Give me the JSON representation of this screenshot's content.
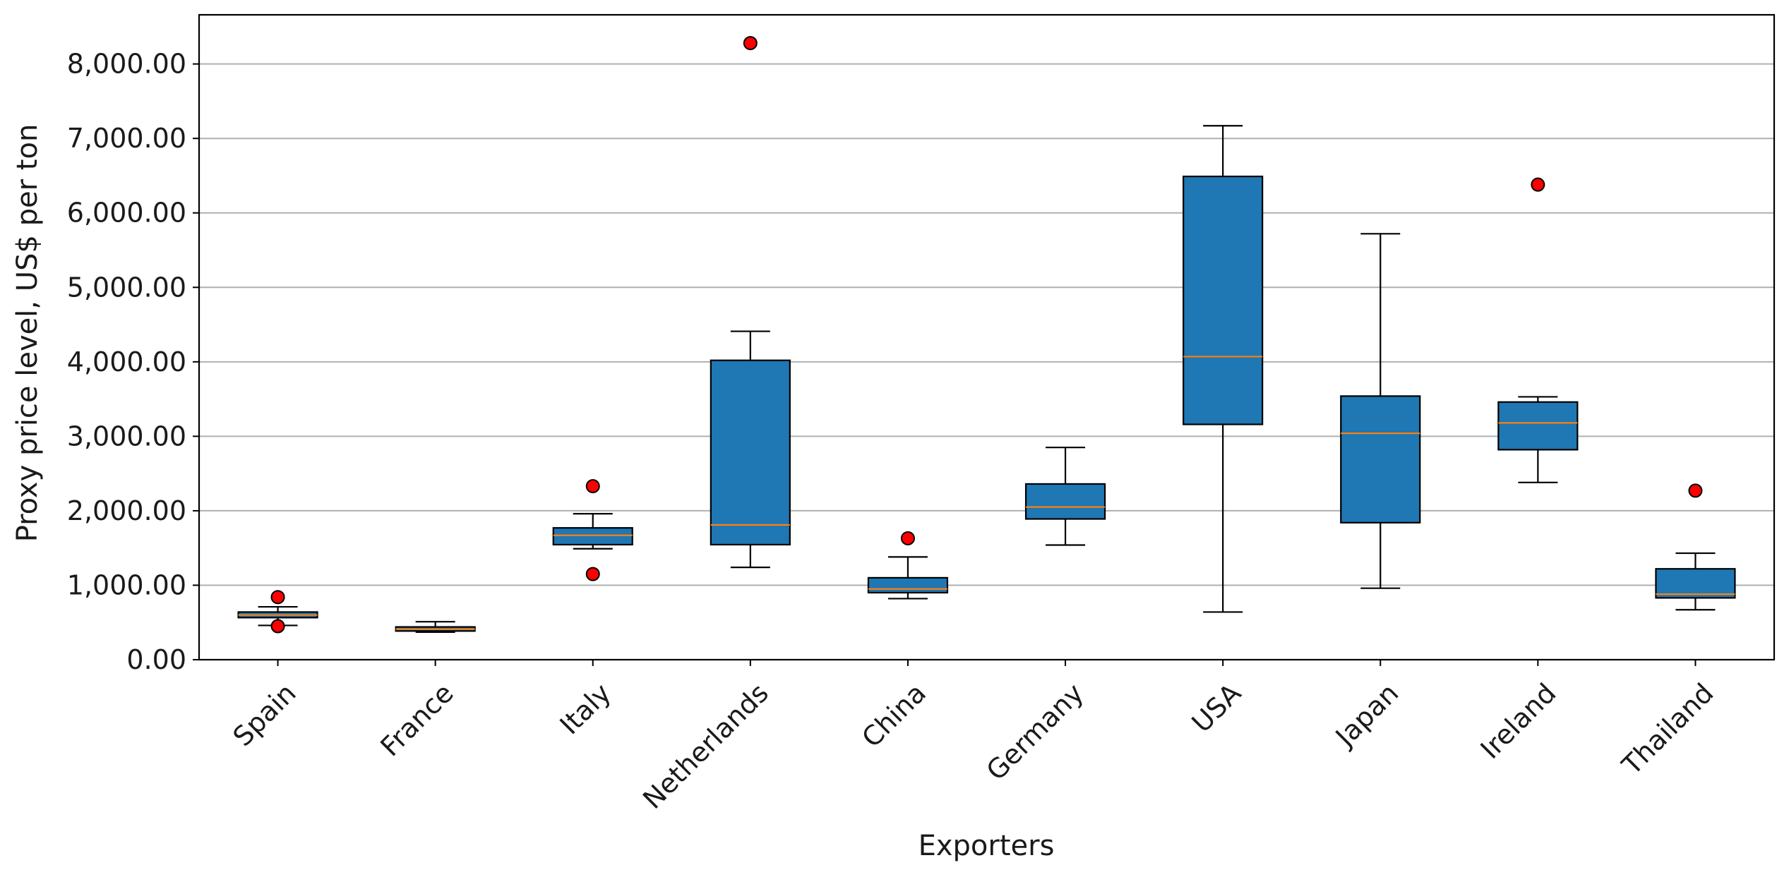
{
  "chart_data": {
    "type": "box",
    "title": "",
    "xlabel": "Exporters",
    "ylabel": "Proxy price level, US$ per ton",
    "ylim": [
      0,
      8660
    ],
    "yticks": [
      0,
      1000,
      2000,
      3000,
      4000,
      5000,
      6000,
      7000,
      8000
    ],
    "ytick_labels": [
      "0.00",
      "1,000.00",
      "2,000.00",
      "3,000.00",
      "4,000.00",
      "5,000.00",
      "6,000.00",
      "7,000.00",
      "8,000.00"
    ],
    "grid": "y",
    "colors": {
      "box_fill": "#1f77b4",
      "median": "#ff7f0e",
      "outlier_fill": "#ff0000",
      "grid": "#b0b0b0",
      "axis": "#000000"
    },
    "categories": [
      "Spain",
      "France",
      "Italy",
      "Netherlands",
      "China",
      "Germany",
      "USA",
      "Japan",
      "Ireland",
      "Thailand"
    ],
    "boxes": [
      {
        "name": "Spain",
        "whislo": 460,
        "q1": 565,
        "med": 600,
        "q3": 640,
        "whishi": 710,
        "fliers": [
          840,
          450
        ]
      },
      {
        "name": "France",
        "whislo": 370,
        "q1": 385,
        "med": 410,
        "q3": 440,
        "whishi": 510,
        "fliers": []
      },
      {
        "name": "Italy",
        "whislo": 1490,
        "q1": 1545,
        "med": 1670,
        "q3": 1770,
        "whishi": 1960,
        "fliers": [
          2330,
          1150
        ]
      },
      {
        "name": "Netherlands",
        "whislo": 1240,
        "q1": 1545,
        "med": 1810,
        "q3": 4020,
        "whishi": 4410,
        "fliers": [
          8280
        ]
      },
      {
        "name": "China",
        "whislo": 820,
        "q1": 900,
        "med": 950,
        "q3": 1100,
        "whishi": 1380,
        "fliers": [
          1630
        ]
      },
      {
        "name": "Germany",
        "whislo": 1540,
        "q1": 1890,
        "med": 2050,
        "q3": 2360,
        "whishi": 2850,
        "fliers": []
      },
      {
        "name": "USA",
        "whislo": 640,
        "q1": 3160,
        "med": 4070,
        "q3": 6490,
        "whishi": 7170,
        "fliers": []
      },
      {
        "name": "Japan",
        "whislo": 960,
        "q1": 1840,
        "med": 3040,
        "q3": 3540,
        "whishi": 5720,
        "fliers": []
      },
      {
        "name": "Ireland",
        "whislo": 2380,
        "q1": 2820,
        "med": 3180,
        "q3": 3460,
        "whishi": 3530,
        "fliers": [
          6380
        ]
      },
      {
        "name": "Thailand",
        "whislo": 670,
        "q1": 830,
        "med": 880,
        "q3": 1220,
        "whishi": 1430,
        "fliers": [
          2270
        ]
      }
    ]
  }
}
